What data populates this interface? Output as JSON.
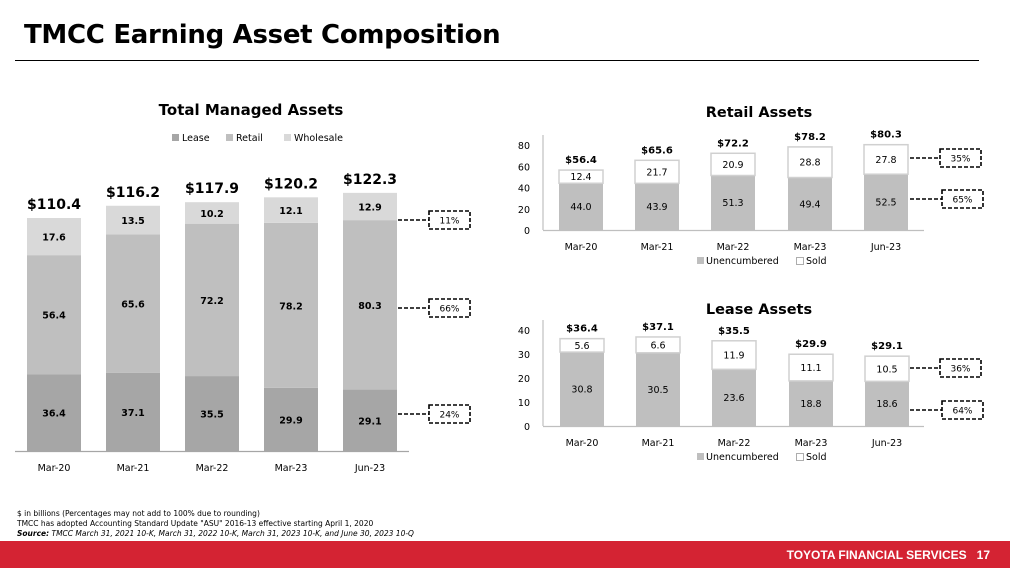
{
  "page": {
    "title": "TMCC Earning Asset Composition",
    "footnotes": {
      "line1": "$ in billions (Percentages may not add to 100% due to rounding)",
      "line2": "TMCC has adopted Accounting Standard Update \"ASU\" 2016-13 effective starting April 1, 2020",
      "source_label": "Source:",
      "source_text": " TMCC March 31, 2021 10-K, March 31, 2022 10-K, March 31, 2023 10-K, and June 30, 2023 10-Q"
    },
    "brand": "TOYOTA FINANCIAL SERVICES",
    "page_number": "17"
  },
  "colors": {
    "lease": "#a6a6a6",
    "retail": "#bfbfbf",
    "wholesale": "#d9d9d9",
    "unencumbered": "#bfbfbf",
    "sold": "#ffffff",
    "red": "#d42333"
  },
  "chart_data": [
    {
      "type": "bar",
      "stacked": true,
      "title": "Total Managed Assets",
      "categories": [
        "Mar-20",
        "Mar-21",
        "Mar-22",
        "Mar-23",
        "Jun-23"
      ],
      "series": [
        {
          "name": "Lease",
          "values": [
            36.4,
            37.1,
            35.5,
            29.9,
            29.1
          ],
          "labels": [
            "36.4",
            "37.1",
            "35.5",
            "29.9",
            "29.1"
          ]
        },
        {
          "name": "Retail",
          "values": [
            56.4,
            65.6,
            72.2,
            78.2,
            80.3
          ],
          "labels": [
            "56.4",
            "65.6",
            "72.2",
            "78.2",
            "80.3"
          ]
        },
        {
          "name": "Wholesale",
          "values": [
            17.6,
            13.5,
            10.2,
            12.1,
            12.9
          ],
          "labels": [
            "17.6",
            "13.5",
            "10.2",
            "12.1",
            "12.9"
          ]
        }
      ],
      "totals": [
        "$110.4",
        "$116.2",
        "$117.9",
        "$120.2",
        "$122.3"
      ],
      "callouts": [
        {
          "series": "Wholesale",
          "text": "11%"
        },
        {
          "series": "Retail",
          "text": "66%"
        },
        {
          "series": "Lease",
          "text": "24%"
        }
      ],
      "legend": "top",
      "ylim": [
        0,
        125
      ],
      "y_axis_visible": false,
      "grid": false
    },
    {
      "type": "bar",
      "stacked": true,
      "title": "Retail Assets",
      "categories": [
        "Mar-20",
        "Mar-21",
        "Mar-22",
        "Mar-23",
        "Jun-23"
      ],
      "series": [
        {
          "name": "Unencumbered",
          "values": [
            44.0,
            43.9,
            51.3,
            49.4,
            52.5
          ],
          "labels": [
            "44.0",
            "43.9",
            "51.3",
            "49.4",
            "52.5"
          ]
        },
        {
          "name": "Sold",
          "values": [
            12.4,
            21.7,
            20.9,
            28.8,
            27.8
          ],
          "labels": [
            "12.4",
            "21.7",
            "20.9",
            "28.8",
            "27.8"
          ]
        }
      ],
      "totals": [
        "$56.4",
        "$65.6",
        "$72.2",
        "$78.2",
        "$80.3"
      ],
      "callouts": [
        {
          "series": "Sold",
          "text": "35%"
        },
        {
          "series": "Unencumbered",
          "text": "65%"
        }
      ],
      "legend": "bottom",
      "ylim": [
        0,
        80
      ],
      "yticks": [
        "0",
        "20",
        "40",
        "60",
        "80"
      ],
      "ytick_values": [
        0,
        20,
        40,
        60,
        80
      ],
      "grid": false
    },
    {
      "type": "bar",
      "stacked": true,
      "title": "Lease Assets",
      "categories": [
        "Mar-20",
        "Mar-21",
        "Mar-22",
        "Mar-23",
        "Jun-23"
      ],
      "series": [
        {
          "name": "Unencumbered",
          "values": [
            30.8,
            30.5,
            23.6,
            18.8,
            18.6
          ],
          "labels": [
            "30.8",
            "30.5",
            "23.6",
            "18.8",
            "18.6"
          ]
        },
        {
          "name": "Sold",
          "values": [
            5.6,
            6.6,
            11.9,
            11.1,
            10.5
          ],
          "labels": [
            "5.6",
            "6.6",
            "11.9",
            "11.1",
            "10.5"
          ]
        }
      ],
      "totals": [
        "$36.4",
        "$37.1",
        "$35.5",
        "$29.9",
        "$29.1"
      ],
      "callouts": [
        {
          "series": "Sold",
          "text": "36%"
        },
        {
          "series": "Unencumbered",
          "text": "64%"
        }
      ],
      "legend": "bottom",
      "ylim": [
        0,
        40
      ],
      "yticks": [
        "0",
        "10",
        "20",
        "30",
        "40"
      ],
      "ytick_values": [
        0,
        10,
        20,
        30,
        40
      ],
      "grid": false
    }
  ]
}
